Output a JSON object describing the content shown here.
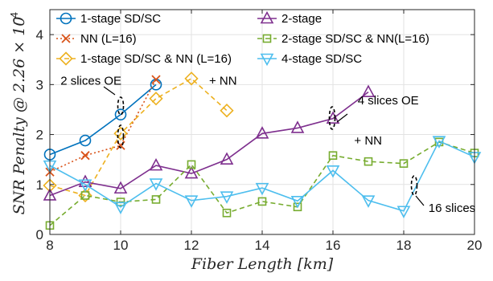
{
  "chart_data": {
    "type": "line",
    "xlabel": "Fiber Length [km]",
    "ylabel": "SNR Penalty @ 2.26 × 10",
    "ylabel_exponent": "−4",
    "xlim": [
      8,
      20
    ],
    "ylim": [
      0,
      4.5
    ],
    "xticks": [
      8,
      10,
      12,
      14,
      16,
      18,
      20
    ],
    "yticks": [
      0,
      1,
      2,
      3,
      4
    ],
    "grid": true,
    "legend_placement": "top-left",
    "series": [
      {
        "name": "1-stage SD/SC",
        "color": "#0072BD",
        "marker": "circle",
        "dash": "solid",
        "x": [
          8,
          9,
          10,
          11
        ],
        "y": [
          1.6,
          1.88,
          2.4,
          3.0
        ]
      },
      {
        "name": "NN (L=16)",
        "color": "#D95319",
        "marker": "x",
        "dash": "dotted",
        "x": [
          8,
          9,
          10,
          11
        ],
        "y": [
          1.25,
          1.58,
          1.78,
          3.1
        ]
      },
      {
        "name": "1-stage SD/SC & NN (L=16)",
        "color": "#EDB120",
        "marker": "diamond",
        "dash": "dashed",
        "x": [
          8,
          9,
          10,
          11,
          12,
          13
        ],
        "y": [
          0.98,
          0.78,
          2.02,
          2.72,
          3.12,
          2.48
        ]
      },
      {
        "name": "2-stage",
        "color": "#7E2F8E",
        "marker": "triangle-up",
        "dash": "solid",
        "x": [
          8,
          9,
          10,
          11,
          12,
          13,
          14,
          15,
          16,
          17
        ],
        "y": [
          0.78,
          1.05,
          0.92,
          1.38,
          1.22,
          1.5,
          2.02,
          2.13,
          2.32,
          2.85
        ]
      },
      {
        "name": "2-stage SD/SC & NN(L=16)",
        "color": "#77AC30",
        "marker": "square",
        "dash": "dashed",
        "x": [
          8,
          9,
          10,
          11,
          12,
          13,
          14,
          15,
          16,
          17,
          18,
          19,
          20
        ],
        "y": [
          0.18,
          0.78,
          0.65,
          0.7,
          1.4,
          0.43,
          0.66,
          0.55,
          1.58,
          1.46,
          1.42,
          1.85,
          1.63
        ]
      },
      {
        "name": "4-stage SD/SC",
        "color": "#4DBEEE",
        "marker": "triangle-down",
        "dash": "solid",
        "x": [
          8,
          9,
          10,
          11,
          12,
          13,
          14,
          15,
          16,
          17,
          18,
          19,
          20
        ],
        "y": [
          1.38,
          1.0,
          0.55,
          1.02,
          0.68,
          0.76,
          0.93,
          0.67,
          1.28,
          0.68,
          0.47,
          1.87,
          1.55
        ]
      }
    ],
    "annotations": [
      {
        "text": "2 slices OE",
        "x": 8.3,
        "y": 3.0
      },
      {
        "text": "+ NN",
        "x": 12.5,
        "y": 3.0
      },
      {
        "text": "4 slices OE",
        "x": 16.7,
        "y": 2.6
      },
      {
        "text": "+ NN",
        "x": 16.6,
        "y": 1.8
      },
      {
        "text": "16 slices",
        "x": 18.7,
        "y": 0.45
      }
    ]
  }
}
